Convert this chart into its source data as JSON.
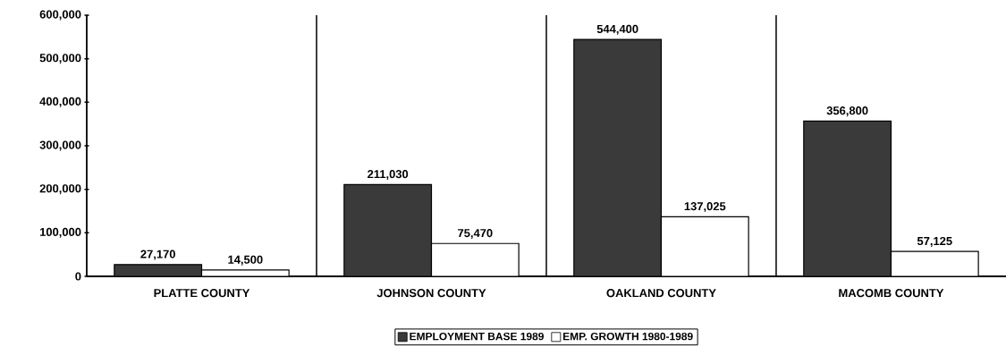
{
  "chart_data": {
    "type": "bar",
    "categories": [
      "PLATTE COUNTY",
      "JOHNSON COUNTY",
      "OAKLAND COUNTY",
      "MACOMB COUNTY"
    ],
    "series": [
      {
        "name": "EMPLOYMENT BASE 1989",
        "color": "#3a3a3a",
        "values": [
          27170,
          211030,
          544400,
          356800
        ],
        "value_labels": [
          "27,170",
          "211,030",
          "544,400",
          "356,800"
        ]
      },
      {
        "name": "EMP. GROWTH 1980-1989",
        "color": "#ffffff",
        "values": [
          14500,
          75470,
          137025,
          57125
        ],
        "value_labels": [
          "14,500",
          "75,470",
          "137,025",
          "57,125"
        ]
      }
    ],
    "ylim": [
      0,
      600000
    ],
    "yticks": [
      {
        "value": 0,
        "label": "0"
      },
      {
        "value": 100000,
        "label": "100,000"
      },
      {
        "value": 200000,
        "label": "200,000"
      },
      {
        "value": 300000,
        "label": "300,000"
      },
      {
        "value": 400000,
        "label": "400,000"
      },
      {
        "value": 500000,
        "label": "500,000"
      },
      {
        "value": 600000,
        "label": "600,000"
      }
    ],
    "grid": "x",
    "legend": "bottom"
  }
}
